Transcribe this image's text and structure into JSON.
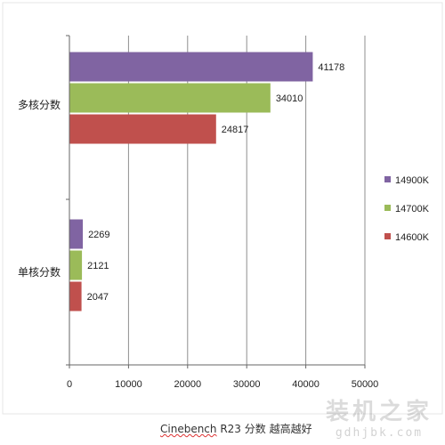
{
  "chart_data": {
    "type": "bar",
    "orientation": "horizontal",
    "title": "",
    "categories": [
      "多核分数",
      "单核分数"
    ],
    "series": [
      {
        "name": "14900K",
        "color": "#8064A2",
        "values": [
          41178,
          2269
        ]
      },
      {
        "name": "14700K",
        "color": "#9BBB59",
        "values": [
          34010,
          2121
        ]
      },
      {
        "name": "14600K",
        "color": "#C0504D",
        "values": [
          24817,
          2047
        ]
      }
    ],
    "xlim": [
      0,
      50000
    ],
    "xticks": [
      "0",
      "10000",
      "20000",
      "30000",
      "40000",
      "50000"
    ],
    "grid": true,
    "legend_position": "right",
    "data_labels": [
      "41178",
      "34010",
      "24817",
      "2269",
      "2121",
      "2047"
    ]
  },
  "caption": {
    "word": "Cinebench",
    "rest": " R23  分数  越高越好"
  },
  "watermark": {
    "name": "装机之家",
    "url": "gdhjbk.com"
  }
}
